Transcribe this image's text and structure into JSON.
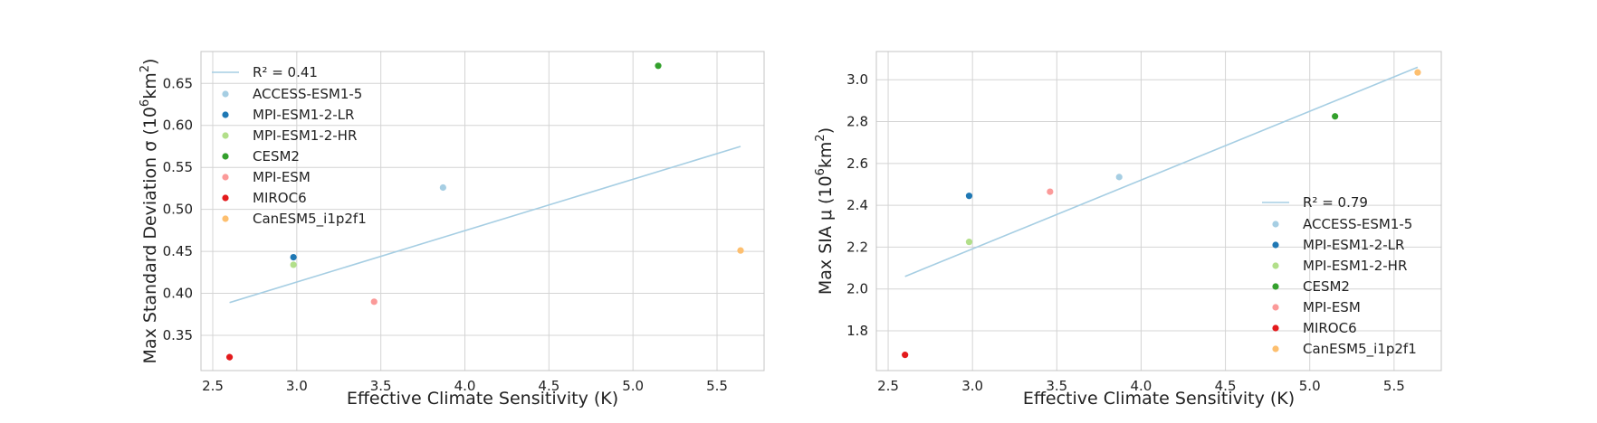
{
  "chart_data": [
    {
      "type": "scatter",
      "xlabel": "Effective Climate Sensitivity (K)",
      "ylabel_prefix": "Max Standard Deviation σ (10",
      "ylabel_sup": "6",
      "ylabel_unit": "km",
      "ylabel_sup2": "2",
      "ylabel_suffix": ")",
      "xlim": [
        2.43,
        5.78
      ],
      "ylim": [
        0.308,
        0.688
      ],
      "xticks": [
        2.5,
        3.0,
        3.5,
        4.0,
        4.5,
        5.0,
        5.5
      ],
      "xtick_labels": [
        "2.5",
        "3.0",
        "3.5",
        "4.0",
        "4.5",
        "5.0",
        "5.5"
      ],
      "yticks": [
        0.35,
        0.4,
        0.45,
        0.5,
        0.55,
        0.6,
        0.65
      ],
      "ytick_labels": [
        "0.35",
        "0.40",
        "0.45",
        "0.50",
        "0.55",
        "0.60",
        "0.65"
      ],
      "fit_line": {
        "label": "R² = 0.41",
        "x": [
          2.6,
          5.64
        ],
        "y": [
          0.389,
          0.575
        ],
        "color": "#a6cee3"
      },
      "legend_position": "upper-left",
      "series": [
        {
          "name": "ACCESS-ESM1-5",
          "color": "#a6cee3",
          "x": 3.87,
          "y": 0.526
        },
        {
          "name": "MPI-ESM1-2-LR",
          "color": "#1f78b4",
          "x": 2.98,
          "y": 0.443
        },
        {
          "name": "MPI-ESM1-2-HR",
          "color": "#b2df8a",
          "x": 2.98,
          "y": 0.434
        },
        {
          "name": "CESM2",
          "color": "#33a02c",
          "x": 5.15,
          "y": 0.671
        },
        {
          "name": "MPI-ESM",
          "color": "#fb9a99",
          "x": 3.46,
          "y": 0.39
        },
        {
          "name": "MIROC6",
          "color": "#e31a1c",
          "x": 2.6,
          "y": 0.324
        },
        {
          "name": "CanESM5_i1p2f1",
          "color": "#fdbf6f",
          "x": 5.64,
          "y": 0.451
        }
      ]
    },
    {
      "type": "scatter",
      "xlabel": "Effective Climate Sensitivity (K)",
      "ylabel_prefix": "Max SIA μ (10",
      "ylabel_sup": "6",
      "ylabel_unit": "km",
      "ylabel_sup2": "2",
      "ylabel_suffix": ")",
      "xlim": [
        2.43,
        5.78
      ],
      "ylim": [
        1.61,
        3.135
      ],
      "xticks": [
        2.5,
        3.0,
        3.5,
        4.0,
        4.5,
        5.0,
        5.5
      ],
      "xtick_labels": [
        "2.5",
        "3.0",
        "3.5",
        "4.0",
        "4.5",
        "5.0",
        "5.5"
      ],
      "yticks": [
        1.8,
        2.0,
        2.2,
        2.4,
        2.6,
        2.8,
        3.0
      ],
      "ytick_labels": [
        "1.8",
        "2.0",
        "2.2",
        "2.4",
        "2.6",
        "2.8",
        "3.0"
      ],
      "fit_line": {
        "label": "R² = 0.79",
        "x": [
          2.6,
          5.64
        ],
        "y": [
          2.06,
          3.06
        ],
        "color": "#a6cee3"
      },
      "legend_position": "lower-right",
      "series": [
        {
          "name": "ACCESS-ESM1-5",
          "color": "#a6cee3",
          "x": 3.87,
          "y": 2.535
        },
        {
          "name": "MPI-ESM1-2-LR",
          "color": "#1f78b4",
          "x": 2.98,
          "y": 2.445
        },
        {
          "name": "MPI-ESM1-2-HR",
          "color": "#b2df8a",
          "x": 2.98,
          "y": 2.225
        },
        {
          "name": "CESM2",
          "color": "#33a02c",
          "x": 5.15,
          "y": 2.825
        },
        {
          "name": "MPI-ESM",
          "color": "#fb9a99",
          "x": 3.46,
          "y": 2.465
        },
        {
          "name": "MIROC6",
          "color": "#e31a1c",
          "x": 2.6,
          "y": 1.685
        },
        {
          "name": "CanESM5_i1p2f1",
          "color": "#fdbf6f",
          "x": 5.64,
          "y": 3.035
        }
      ]
    }
  ]
}
